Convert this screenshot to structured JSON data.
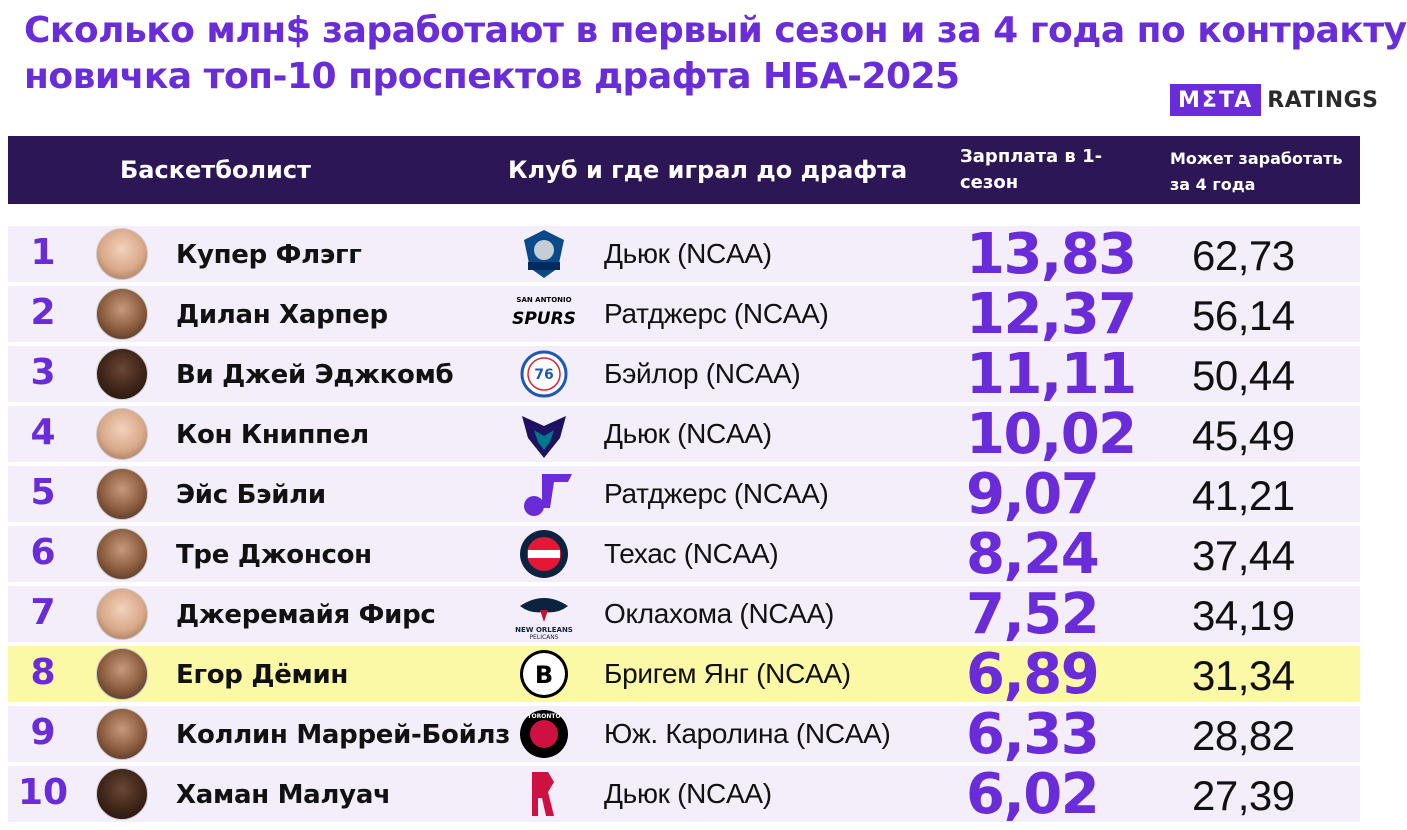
{
  "title_line1": "Сколько млн$ заработают в первый сезон и за 4 года по контракту",
  "title_line2": "новичка топ-10 проспектов драфта НБА-2025",
  "logo": {
    "meta": "MΣTA",
    "ratings": "RATINGS"
  },
  "headers": {
    "player": "Баскетболист",
    "club": "Клуб и где играл до драфта",
    "salary_line1": "Зарплата в 1-",
    "salary_line2": "сезон",
    "four_line1": "Может заработать",
    "four_line2": "за 4 года"
  },
  "colors": {
    "accent": "#6a2bd9",
    "header_bg": "#2c1656",
    "row_bg": "#f3eef9",
    "highlight_bg": "#fbf8a6"
  },
  "chart_data": {
    "type": "table",
    "columns": [
      "Баскетболист",
      "Клуб и где играл до драфта",
      "Зарплата в 1-сезон",
      "Может заработать за 4 года"
    ],
    "rows": [
      {
        "rank": "1",
        "player": "Купер Флэгг",
        "team": "Dallas Mavericks",
        "team_icon": "mavericks-logo",
        "club": "Дьюк (NCAA)",
        "salary": "13,83",
        "four_years": "62,73",
        "salary_value": 13.83,
        "four_value": 62.73,
        "highlight": false,
        "skin": "light"
      },
      {
        "rank": "2",
        "player": "Дилан Харпер",
        "team": "San Antonio Spurs",
        "team_icon": "spurs-logo",
        "club": "Ратджерс (NCAA)",
        "salary": "12,37",
        "four_years": "56,14",
        "salary_value": 12.37,
        "four_value": 56.14,
        "highlight": false,
        "skin": "mid"
      },
      {
        "rank": "3",
        "player": "Ви Джей Эджкомб",
        "team": "Philadelphia 76ers",
        "team_icon": "sixers-logo",
        "club": "Бэйлор (NCAA)",
        "salary": "11,11",
        "four_years": "50,44",
        "salary_value": 11.11,
        "four_value": 50.44,
        "highlight": false,
        "skin": "dark"
      },
      {
        "rank": "4",
        "player": "Кон Книппел",
        "team": "Charlotte Hornets",
        "team_icon": "hornets-logo",
        "club": "Дьюк (NCAA)",
        "salary": "10,02",
        "four_years": "45,49",
        "salary_value": 10.02,
        "four_value": 45.49,
        "highlight": false,
        "skin": "light"
      },
      {
        "rank": "5",
        "player": "Эйс Бэйли",
        "team": "Utah Jazz",
        "team_icon": "jazz-logo",
        "club": "Ратджерс (NCAA)",
        "salary": "9,07",
        "four_years": "41,21",
        "salary_value": 9.07,
        "four_value": 41.21,
        "highlight": false,
        "skin": "mid"
      },
      {
        "rank": "6",
        "player": "Тре Джонсон",
        "team": "Washington Wizards",
        "team_icon": "wizards-logo",
        "club": "Техас (NCAA)",
        "salary": "8,24",
        "four_years": "37,44",
        "salary_value": 8.24,
        "four_value": 37.44,
        "highlight": false,
        "skin": "mid"
      },
      {
        "rank": "7",
        "player": "Джеремайя Фирс",
        "team": "New Orleans Pelicans",
        "team_icon": "pelicans-logo",
        "club": "Оклахома (NCAA)",
        "salary": "7,52",
        "four_years": "34,19",
        "salary_value": 7.52,
        "four_value": 34.19,
        "highlight": false,
        "skin": "light"
      },
      {
        "rank": "8",
        "player": "Егор Дёмин",
        "team": "Brooklyn Nets",
        "team_icon": "nets-logo",
        "club": "Бригем Янг (NCAA)",
        "salary": "6,89",
        "four_years": "31,34",
        "salary_value": 6.89,
        "four_value": 31.34,
        "highlight": true,
        "skin": "mid"
      },
      {
        "rank": "9",
        "player": "Коллин Маррей-Бойлз",
        "team": "Toronto Raptors",
        "team_icon": "raptors-logo",
        "club": "Юж. Каролина (NCAA)",
        "salary": "6,33",
        "four_years": "28,82",
        "salary_value": 6.33,
        "four_value": 28.82,
        "highlight": false,
        "skin": "mid"
      },
      {
        "rank": "10",
        "player": "Хаман Малуач",
        "team": "Houston Rockets",
        "team_icon": "rockets-logo",
        "club": "Дьюк (NCAA)",
        "salary": "6,02",
        "four_years": "27,39",
        "salary_value": 6.02,
        "four_value": 27.39,
        "highlight": false,
        "skin": "dark"
      }
    ]
  }
}
